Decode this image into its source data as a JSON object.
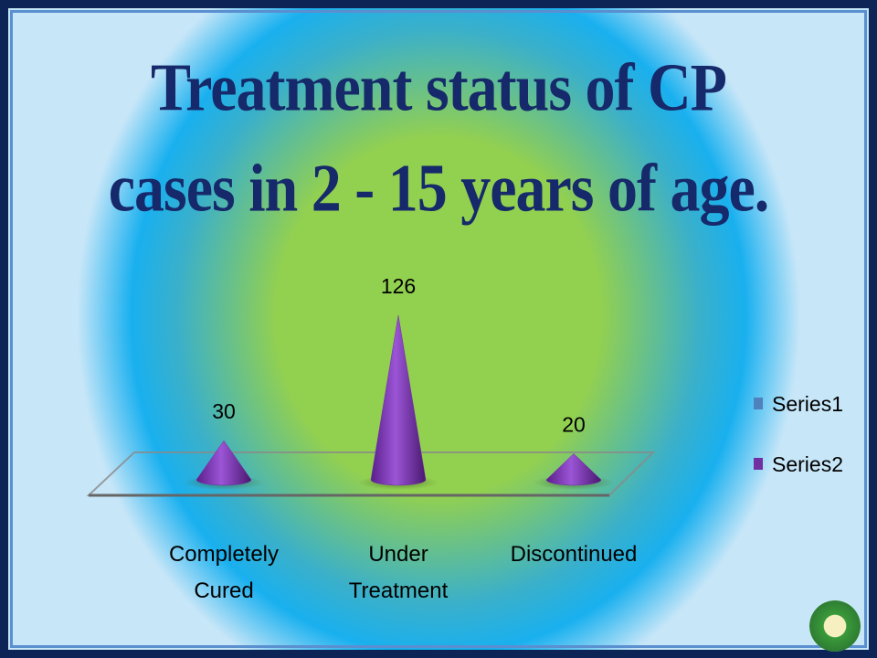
{
  "chart_data": {
    "type": "cone",
    "title": [
      "Treatment status of CP",
      "cases in 2 - 15 years of age."
    ],
    "categories": [
      "Completely Cured",
      "Under Treatment",
      "Discontinued"
    ],
    "series": [
      {
        "name": "Series1",
        "color": "#4f81bd",
        "values": [
          null,
          null,
          null
        ]
      },
      {
        "name": "Series2",
        "color": "#7030a0",
        "values": [
          30,
          126,
          20
        ]
      }
    ],
    "legend": "right"
  }
}
